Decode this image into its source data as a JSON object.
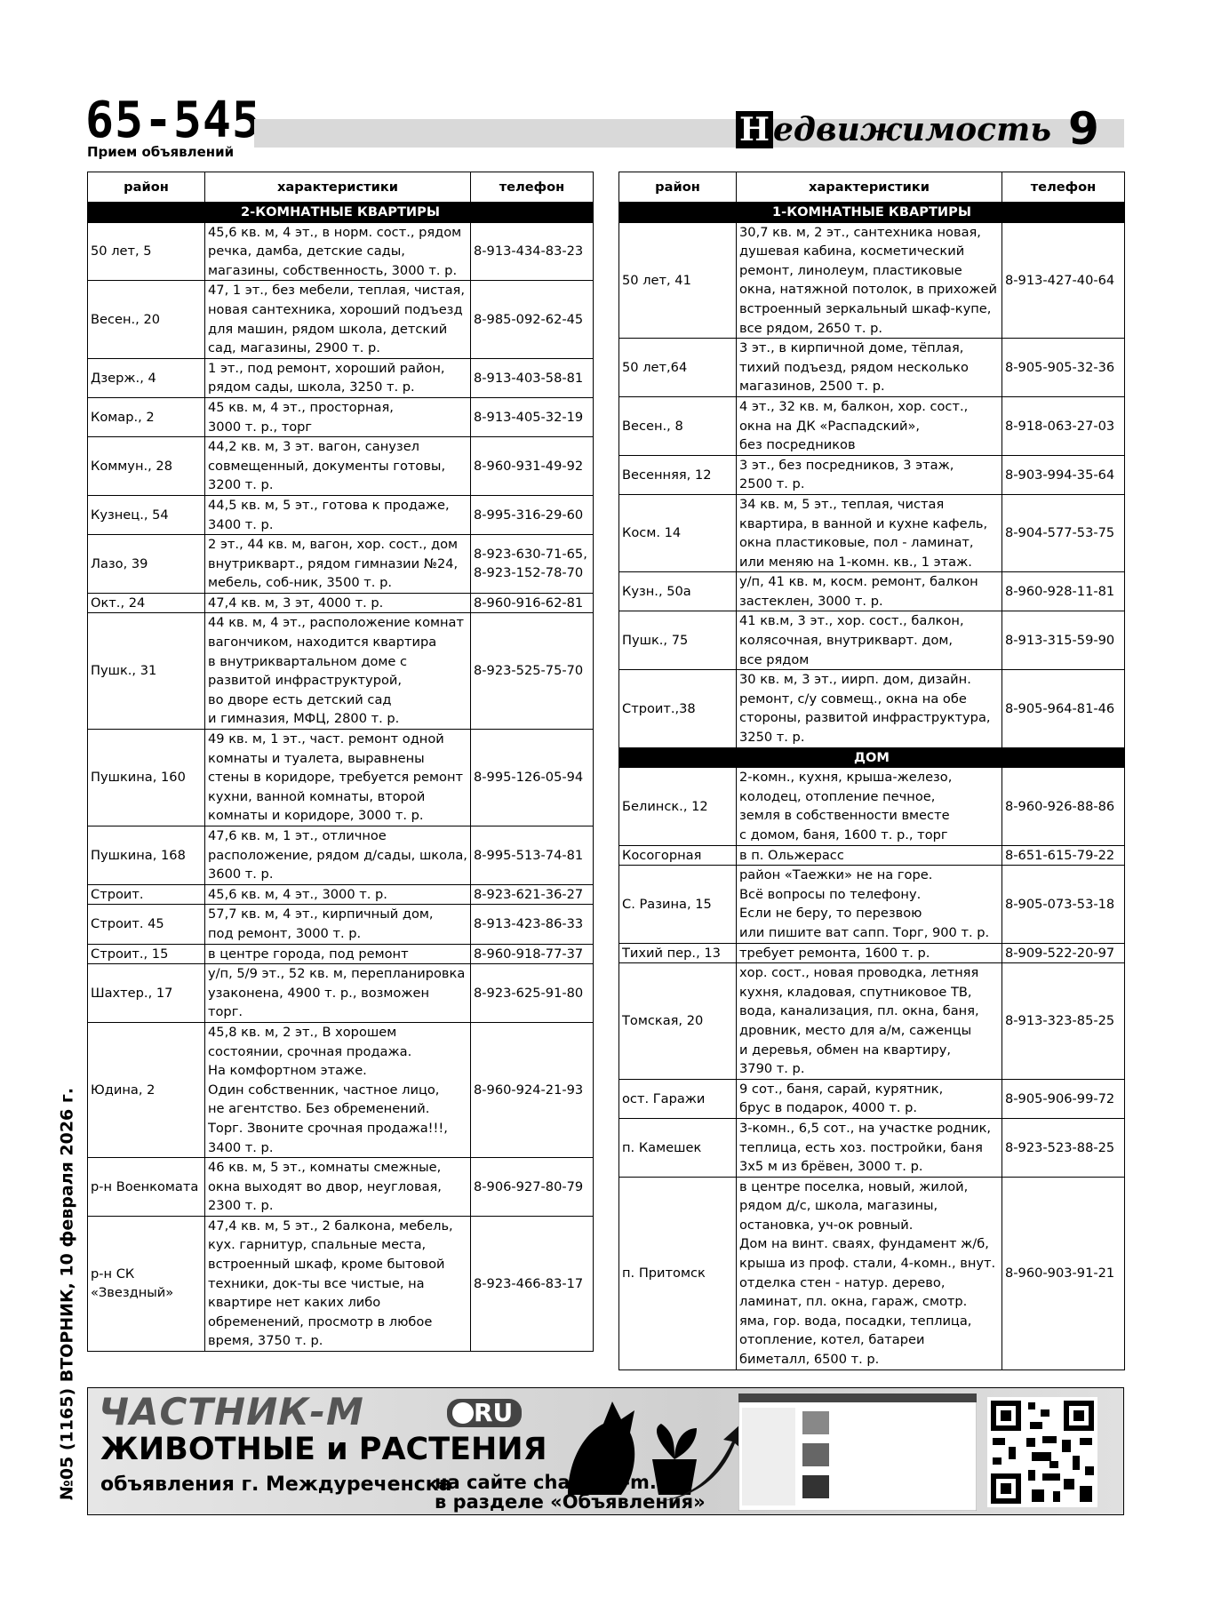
{
  "header": {
    "phone": "65-545",
    "subtitle": "Прием объявлений",
    "section": "Недвижимость",
    "page": "9"
  },
  "left_table": {
    "columns": [
      "район",
      "характеристики",
      "телефон"
    ],
    "sections": [
      {
        "title": "2-КОМНАТНЫЕ КВАРТИРЫ",
        "rows": [
          [
            "50 лет, 5",
            "45,6 кв. м, 4 эт., в норм. сост., рядом\nречка, дамба, детские сады,\nмагазины, собственность, 3000 т. р.",
            "8-913-434-83-23"
          ],
          [
            "Весен., 20",
            "47, 1 эт., без мебели, теплая, чистая,\nновая сантехника, хороший подъезд\nдля машин, рядом школа, детский\nсад, магазины, 2900 т. р.",
            "8-985-092-62-45"
          ],
          [
            "Дзерж., 4",
            "1 эт., под ремонт, хороший район,\nрядом сады, школа, 3250 т. р.",
            "8-913-403-58-81"
          ],
          [
            "Комар., 2",
            "45 кв. м, 4 эт., просторная,\n3000 т. р., торг",
            "8-913-405-32-19"
          ],
          [
            "Коммун., 28",
            "44,2 кв. м, 3 эт. вагон, санузел\nсовмещенный, документы готовы,\n3200 т. р.",
            "8-960-931-49-92"
          ],
          [
            "Кузнец., 54",
            "44,5 кв. м, 5 эт., готова к продаже,\n3400 т. р.",
            "8-995-316-29-60"
          ],
          [
            "Лазо, 39",
            "2 эт., 44 кв. м, вагон, хор. сост., дом\nвнутрикварт., рядом гимназии №24,\nмебель, соб-ник, 3500 т. р.",
            "8-923-630-71-65,\n8-923-152-78-70"
          ],
          [
            "Окт., 24",
            "47,4 кв. м, 3 эт, 4000 т. р.",
            "8-960-916-62-81"
          ],
          [
            "Пушк., 31",
            "44 кв. м, 4 эт., расположение комнат\nвагончиком, находится квартира\nв внутриквартальном доме с\nразвитой инфраструктурой,\nво дворе есть детский сад\nи гимназия, МФЦ, 2800 т. р.",
            "8-923-525-75-70"
          ],
          [
            "Пушкина, 160",
            "49 кв. м, 1 эт., част. ремонт одной\nкомнаты и туалета, выравнены\nстены в коридоре, требуется ремонт\nкухни, ванной комнаты, второй\nкомнаты и коридоре, 3000 т. р.",
            "8-995-126-05-94"
          ],
          [
            "Пушкина, 168",
            "47,6 кв. м, 1 эт., отличное\nрасположение, рядом д/сады, школа,\n3600 т. р.",
            "8-995-513-74-81"
          ],
          [
            "Строит.",
            "45,6 кв. м, 4 эт., 3000 т. р.",
            "8-923-621-36-27"
          ],
          [
            "Строит. 45",
            "57,7 кв. м, 4 эт., кирпичный дом,\nпод ремонт, 3000 т. р.",
            "8-913-423-86-33"
          ],
          [
            "Строит., 15",
            "в центре города, под ремонт",
            "8-960-918-77-37"
          ],
          [
            "Шахтер., 17",
            "у/п, 5/9 эт., 52 кв. м, перепланировка\nузаконена, 4900 т. р., возможен торг.",
            "8-923-625-91-80"
          ],
          [
            "Юдина, 2",
            "45,8 кв. м, 2 эт., В хорошем\nсостоянии, срочная продажа.\nНа комфортном этаже.\nОдин собственник, частное лицо,\nне агентство. Без обременений.\nТорг. Звоните срочная продажа!!!,\n3400 т. р.",
            "8-960-924-21-93"
          ],
          [
            "р-н Военкомата",
            "46 кв. м, 5 эт., комнаты смежные,\nокна выходят во двор, неугловая,\n2300 т. р.",
            "8-906-927-80-79"
          ],
          [
            "р-н СК\n«Звездный»",
            "47,4 кв. м, 5 эт., 2 балкона, мебель,\nкух. гарнитур, спальные места,\nвстроенный шкаф, кроме бытовой\nтехники, док-ты все чистые, на\nквартире нет каких либо\nобременений, просмотр в любое\nвремя, 3750 т. р.",
            "8-923-466-83-17"
          ]
        ]
      }
    ]
  },
  "right_table": {
    "columns": [
      "район",
      "характеристики",
      "телефон"
    ],
    "sections": [
      {
        "title": "1-КОМНАТНЫЕ КВАРТИРЫ",
        "rows": [
          [
            "50 лет, 41",
            "30,7 кв. м, 2 эт., сантехника новая,\nдушевая кабина, косметический\nремонт, линолеум, пластиковые\nокна, натяжной потолок, в прихожей\nвстроенный зеркальный шкаф-купе,\nвсе рядом, 2650 т. р.",
            "8-913-427-40-64"
          ],
          [
            "50 лет,64",
            "3 эт., в кирпичной доме, тёплая,\nтихий подъезд, рядом несколько\nмагазинов, 2500 т. р.",
            "8-905-905-32-36"
          ],
          [
            "Весен., 8",
            "4 эт., 32 кв. м, балкон, хор. сост.,\nокна на ДК «Распадский»,\nбез посредников",
            "8-918-063-27-03"
          ],
          [
            "Весенняя, 12",
            "3 эт., без посредников, 3 этаж,\n2500 т. р.",
            "8-903-994-35-64"
          ],
          [
            "Косм. 14",
            "34 кв. м, 5 эт., теплая, чистая\nквартира, в ванной и кухне кафель,\nокна пластиковые, пол - ламинат,\nили меняю на 1-комн. кв., 1 этаж.",
            "8-904-577-53-75"
          ],
          [
            "Кузн., 50а",
            "у/п, 41 кв. м, косм. ремонт, балкон\nзастеклен, 3000 т. р.",
            "8-960-928-11-81"
          ],
          [
            "Пушк., 75",
            "41 кв.м, 3 эт., хор. сост., балкон,\nколясочная, внутрикварт. дом,\nвсе рядом",
            "8-913-315-59-90"
          ],
          [
            "Строит.,38",
            "30 кв. м, 3 эт., иирп. дом, дизайн.\nремонт, с/у совмещ., окна на обе\nстороны, развитой инфраструктура,\n3250 т. р.",
            "8-905-964-81-46"
          ]
        ]
      },
      {
        "title": "ДОМ",
        "rows": [
          [
            "Белинск., 12",
            "2-комн., кухня, крыша-железо,\nколодец, отопление печное,\nземля в собственности вместе\nс домом, баня, 1600 т. р., торг",
            "8-960-926-88-86"
          ],
          [
            "Косогорная",
            "в п. Ольжерасс",
            "8-651-615-79-22"
          ],
          [
            "С. Разина, 15",
            "район «Таежки» не на горе.\nВсё вопросы по телефону.\nЕсли не беру, то перезвою\nили пишите ват сапп. Торг, 900 т. р.",
            "8-905-073-53-18"
          ],
          [
            "Тихий пер., 13",
            "требует ремонта, 1600 т. р.",
            "8-909-522-20-97"
          ],
          [
            "Томская, 20",
            "хор. сост., новая проводка, летняя\nкухня, кладовая, спутниковое ТВ,\nвода, канализация, пл. окна, баня,\nдровник, место для а/м, саженцы\nи деревья, обмен на квартиру,\n3790 т. р.",
            "8-913-323-85-25"
          ],
          [
            "ост. Гаражи",
            "9 сот., баня, сарай, курятник,\nбрус в подарок, 4000 т. р.",
            "8-905-906-99-72"
          ],
          [
            "п. Камешек",
            "3-комн., 6,5 сот., на участке родник,\nтеплица, есть хоз. постройки, баня\n3х5 м из брёвен, 3000 т. р.",
            "8-923-523-88-25"
          ],
          [
            "п. Притомск",
            "в центре поселка, новый, жилой,\nрядом д/с, школа, магазины,\nостановка, уч-ок ровный.\nДом на винт. сваях, фундамент ж/б,\nкрыша из проф. стали, 4-комн., внут.\nотделка стен - натур. дерево,\nламинат, пл. окна, гараж, смотр.\nяма, гор. вода, посадки, теплица,\nотопление, котел, батареи\nбиметалл, 6500 т. р.",
            "8-960-903-91-21"
          ]
        ]
      }
    ]
  },
  "side_text": "№05 (1165) ВТОРНИК, 10 февраля 2026 г.",
  "banner": {
    "brand": "ЧАСТНИК-М",
    "domain": "RU",
    "headline": "ЖИВОТНЫЕ и РАСТЕНИЯ",
    "subline": "объявления г. Междуреченска",
    "site": "на сайте chastnik-m.ru",
    "section": "в разделе «Объявления»"
  }
}
